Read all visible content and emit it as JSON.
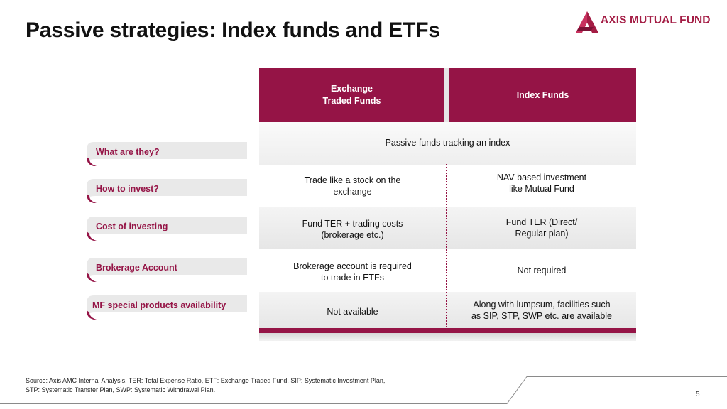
{
  "title": "Passive strategies: Index funds and ETFs",
  "logo": {
    "text": "AXIS MUTUAL FUND",
    "icon": "axis-logo-icon",
    "brand_color": "#a41d45"
  },
  "accent_color": "#951446",
  "table": {
    "headers": {
      "etf": "Exchange\nTraded Funds",
      "etf_line1": "Exchange",
      "etf_line2": "Traded Funds",
      "index": "Index Funds"
    },
    "rows": [
      {
        "label": "What are they?",
        "merged": "Passive funds tracking an index"
      },
      {
        "label": "How to invest?",
        "etf": [
          "Trade like a stock on the",
          "exchange"
        ],
        "index": [
          "NAV based investment",
          "like Mutual Fund"
        ]
      },
      {
        "label": "Cost of investing",
        "etf": [
          "Fund TER + trading costs",
          "(brokerage etc.)"
        ],
        "index": [
          "Fund TER (Direct/",
          "Regular plan)"
        ]
      },
      {
        "label": "Brokerage Account",
        "etf": [
          "Brokerage account is required",
          "to trade in ETFs"
        ],
        "index": [
          "Not required"
        ]
      },
      {
        "label": "MF special  products availability",
        "etf": [
          "Not available"
        ],
        "index": [
          "Along with lumpsum, facilities such",
          "as SIP, STP, SWP etc. are available"
        ]
      }
    ]
  },
  "footer": {
    "source_line1": "Source: Axis AMC Internal Analysis. TER: Total Expense Ratio, ETF: Exchange Traded Fund, SIP: Systematic Investment Plan,",
    "source_line2": "STP: Systematic Transfer Plan, SWP: Systematic Withdrawal Plan.",
    "page_number": "5"
  }
}
